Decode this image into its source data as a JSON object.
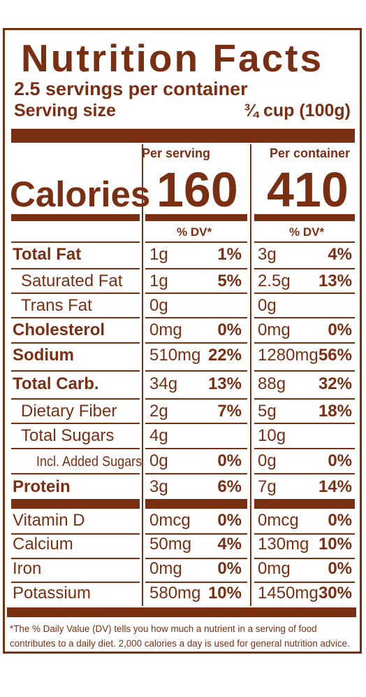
{
  "label": {
    "title": "Nutrition Facts",
    "servings_per_container": "2.5 servings per container",
    "serving_size_label": "Serving size",
    "serving_size_value": "¾ cup (100g)",
    "per_serving_header": "Per serving",
    "per_container_header": "Per container",
    "calories_label": "Calories",
    "calories_per_serving": "160",
    "calories_per_container": "410",
    "dv_header": "% DV*",
    "nutrients": [
      {
        "name": "Total Fat",
        "bold": true,
        "indent": 0,
        "serving_amount": "1g",
        "serving_dv": "1%",
        "container_amount": "3g",
        "container_dv": "4%"
      },
      {
        "name": "Saturated Fat",
        "bold": false,
        "indent": 1,
        "serving_amount": "1g",
        "serving_dv": "5%",
        "container_amount": "2.5g",
        "container_dv": "13%"
      },
      {
        "name": "Trans Fat",
        "bold": false,
        "indent": 1,
        "serving_amount": "0g",
        "serving_dv": "",
        "container_amount": "0g",
        "container_dv": ""
      },
      {
        "name": "Cholesterol",
        "bold": true,
        "indent": 0,
        "serving_amount": "0mg",
        "serving_dv": "0%",
        "container_amount": "0mg",
        "container_dv": "0%"
      },
      {
        "name": "Sodium",
        "bold": true,
        "indent": 0,
        "serving_amount": "510mg",
        "serving_dv": "22%",
        "container_amount": "1280mg",
        "container_dv": "56%"
      },
      {
        "name": "Total Carb.",
        "bold": true,
        "indent": 0,
        "serving_amount": "34g",
        "serving_dv": "13%",
        "container_amount": "88g",
        "container_dv": "32%"
      },
      {
        "name": "Dietary Fiber",
        "bold": false,
        "indent": 1,
        "serving_amount": "2g",
        "serving_dv": "7%",
        "container_amount": "5g",
        "container_dv": "18%"
      },
      {
        "name": "Total Sugars",
        "bold": false,
        "indent": 1,
        "serving_amount": "4g",
        "serving_dv": "",
        "container_amount": "10g",
        "container_dv": ""
      },
      {
        "name": "Incl. Added Sugars",
        "bold": false,
        "indent": 2,
        "serving_amount": "0g",
        "serving_dv": "0%",
        "container_amount": "0g",
        "container_dv": "0%"
      },
      {
        "name": "Protein",
        "bold": true,
        "indent": 0,
        "serving_amount": "3g",
        "serving_dv": "6%",
        "container_amount": "7g",
        "container_dv": "14%"
      }
    ],
    "vitamins": [
      {
        "name": "Vitamin D",
        "serving_amount": "0mcg",
        "serving_dv": "0%",
        "container_amount": "0mcg",
        "container_dv": "0%"
      },
      {
        "name": "Calcium",
        "serving_amount": "50mg",
        "serving_dv": "4%",
        "container_amount": "130mg",
        "container_dv": "10%"
      },
      {
        "name": "Iron",
        "serving_amount": "0mg",
        "serving_dv": "0%",
        "container_amount": "0mg",
        "container_dv": "0%"
      },
      {
        "name": "Potassium",
        "serving_amount": "580mg",
        "serving_dv": "10%",
        "container_amount": "1450mg",
        "container_dv": "30%"
      }
    ],
    "footnote": "*The % Daily Value (DV) tells you how much a nutrient in a serving of food contributes to a daily diet. 2,000 calories a day is used for general nutrition advice."
  },
  "colors": {
    "brand_brown": "#7a2e12",
    "background": "#ffffff"
  }
}
